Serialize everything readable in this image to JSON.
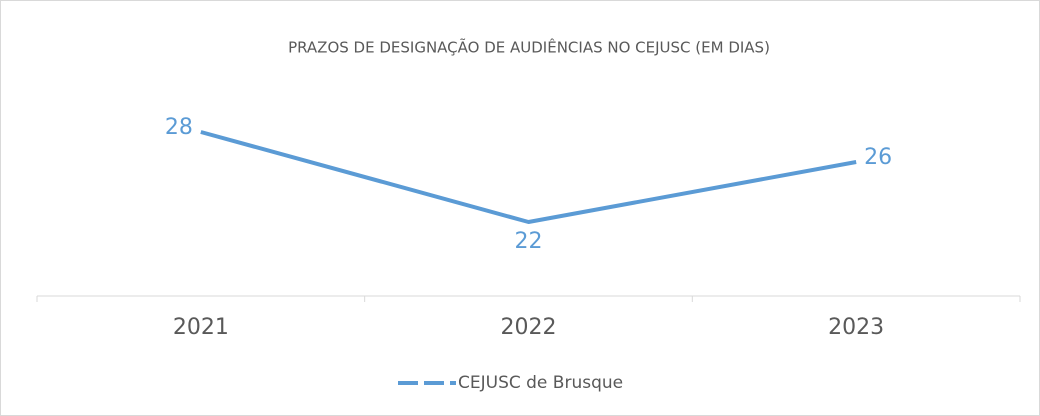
{
  "chart_data": {
    "type": "line",
    "title": "PRAZOS DE DESIGNAÇÃO DE AUDIÊNCIAS NO CEJUSC (EM DIAS)",
    "categories": [
      "2021",
      "2022",
      "2023"
    ],
    "series": [
      {
        "name": "CEJUSC de Brusque",
        "color": "#5b9bd5",
        "values": [
          28,
          22,
          26
        ]
      }
    ],
    "legend": "bottom",
    "data_labels": true
  }
}
